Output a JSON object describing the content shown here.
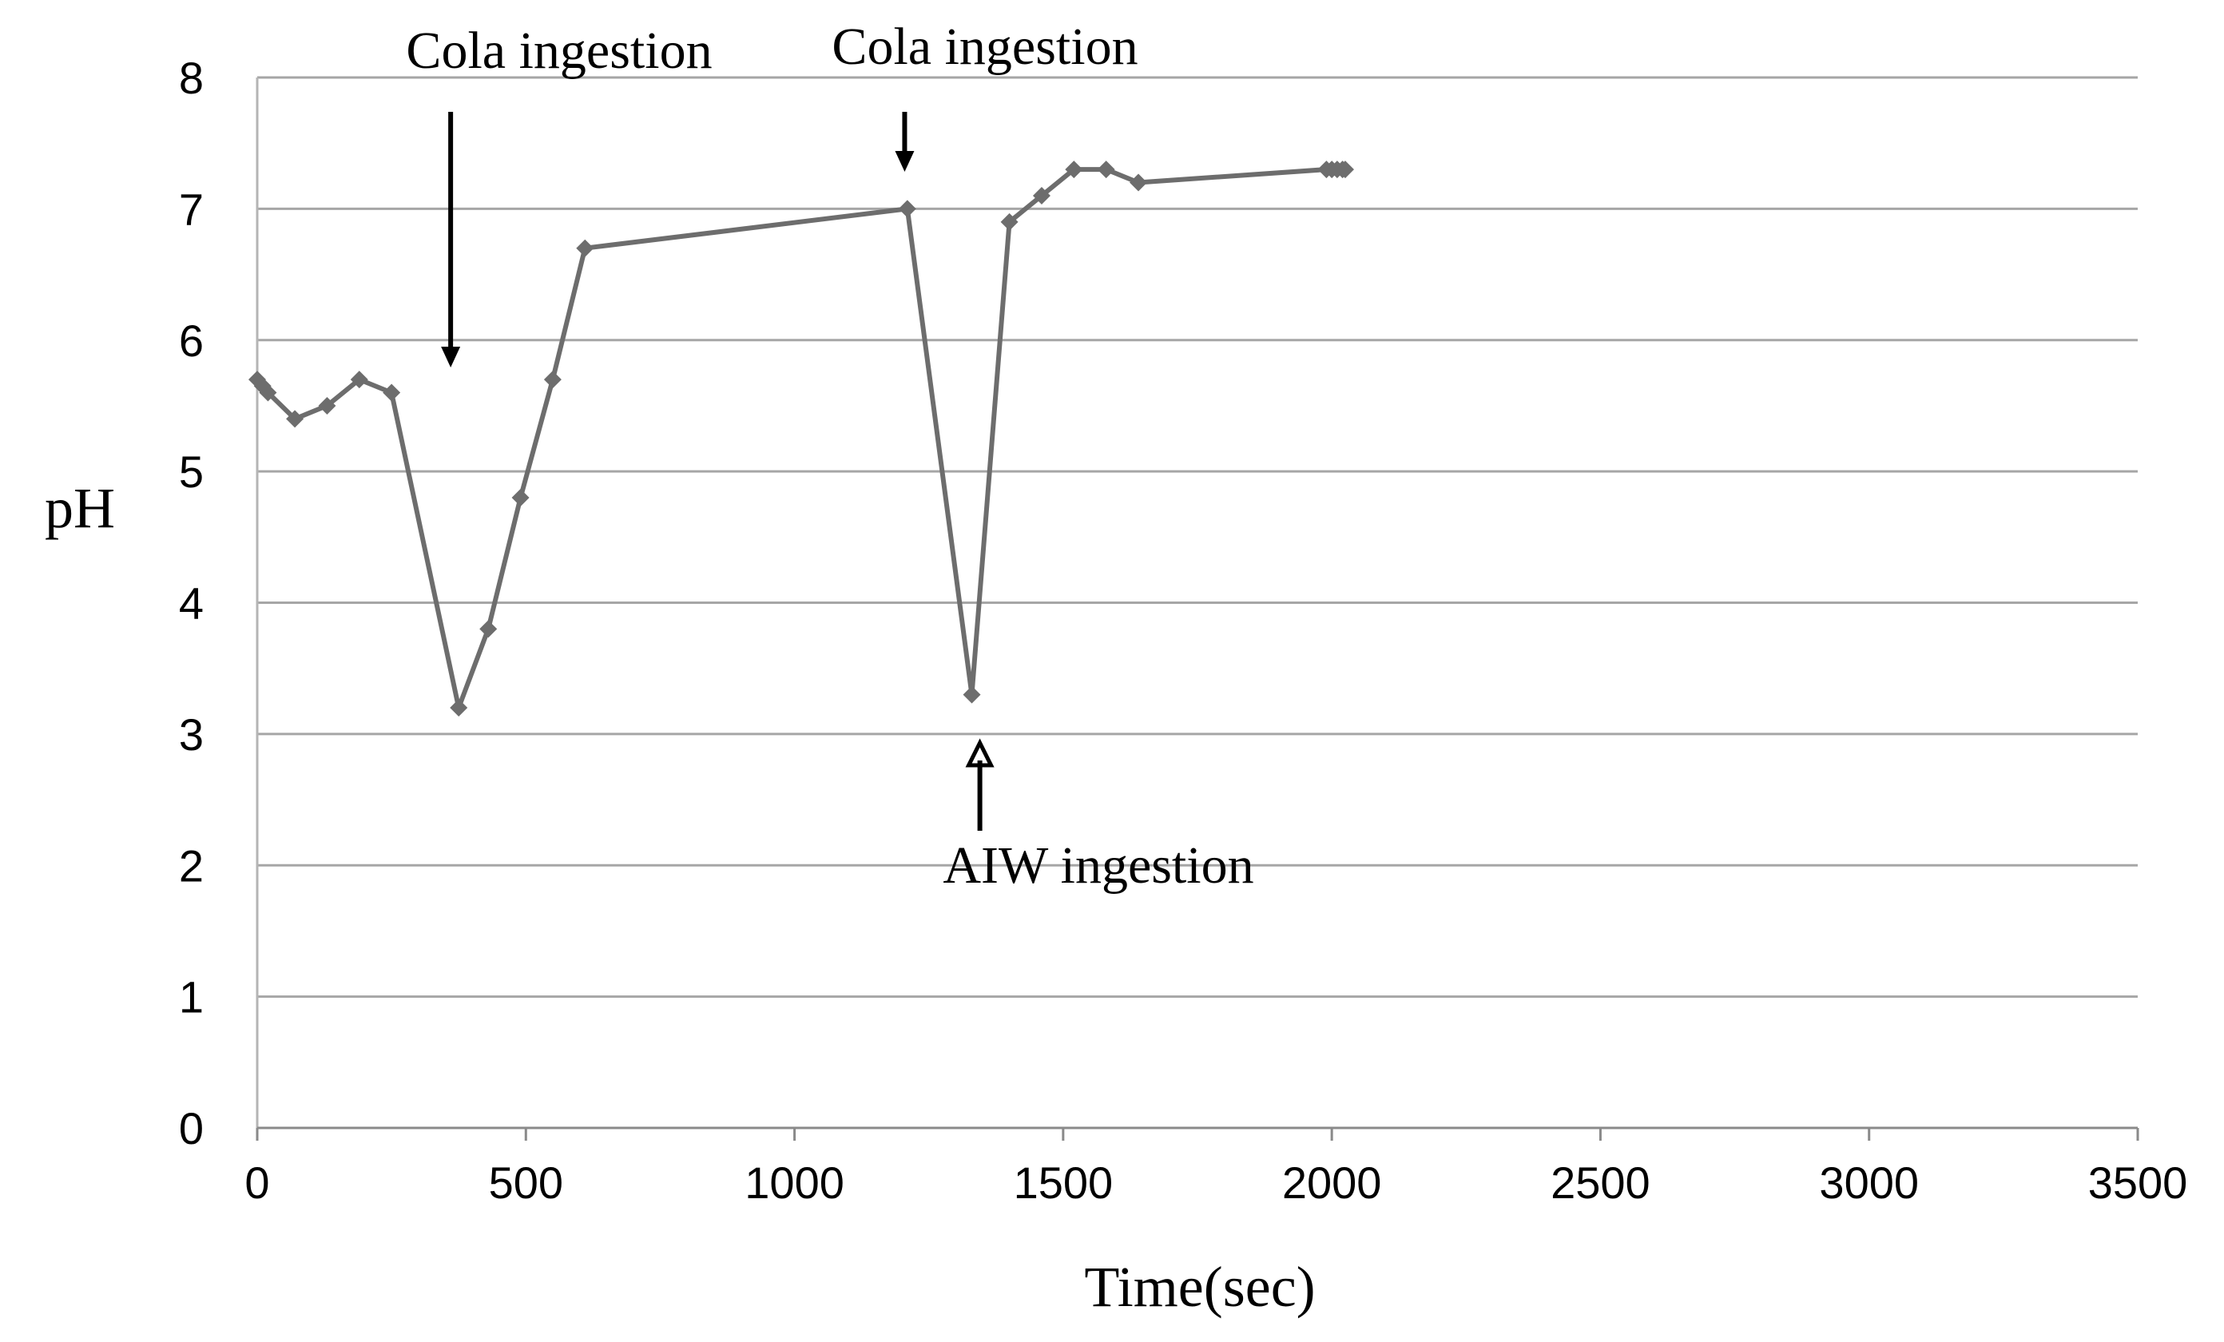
{
  "chart_data": {
    "type": "line",
    "title": "",
    "xlabel": "Time(sec)",
    "ylabel": "pH",
    "xlim": [
      0,
      3500
    ],
    "ylim": [
      0,
      8
    ],
    "xticks": [
      0,
      500,
      1000,
      1500,
      2000,
      2500,
      3000,
      3500
    ],
    "yticks": [
      0,
      1,
      2,
      3,
      4,
      5,
      6,
      7,
      8
    ],
    "xtick_labels": [
      "0",
      "500",
      "1000",
      "1500",
      "2000",
      "2500",
      "3000",
      "3500"
    ],
    "ytick_labels": [
      "0",
      "1",
      "2",
      "3",
      "4",
      "5",
      "6",
      "7",
      "8"
    ],
    "grid": "horizontal",
    "series": [
      {
        "name": "pH",
        "color": "#6d6d6d",
        "x": [
          0,
          10,
          20,
          70,
          130,
          190,
          250,
          375,
          430,
          490,
          550,
          610,
          1210,
          1330,
          1400,
          1460,
          1520,
          1580,
          1640,
          1990,
          2000,
          2010,
          2020,
          2025
        ],
        "y": [
          5.7,
          5.65,
          5.6,
          5.4,
          5.5,
          5.7,
          5.6,
          3.2,
          3.8,
          4.8,
          5.7,
          6.7,
          7.0,
          3.3,
          6.9,
          7.1,
          7.3,
          7.3,
          7.2,
          7.3,
          7.3,
          7.3,
          7.3,
          7.3
        ]
      }
    ],
    "annotations": [
      {
        "text": "Cola ingestion",
        "arrow": "down",
        "x_data": 360,
        "label_position": "top"
      },
      {
        "text": "Cola ingestion",
        "arrow": "down",
        "x_data": 1205,
        "label_position": "top"
      },
      {
        "text": "AIW ingestion",
        "arrow": "up",
        "x_data": 1345,
        "label_position": "below"
      }
    ]
  }
}
